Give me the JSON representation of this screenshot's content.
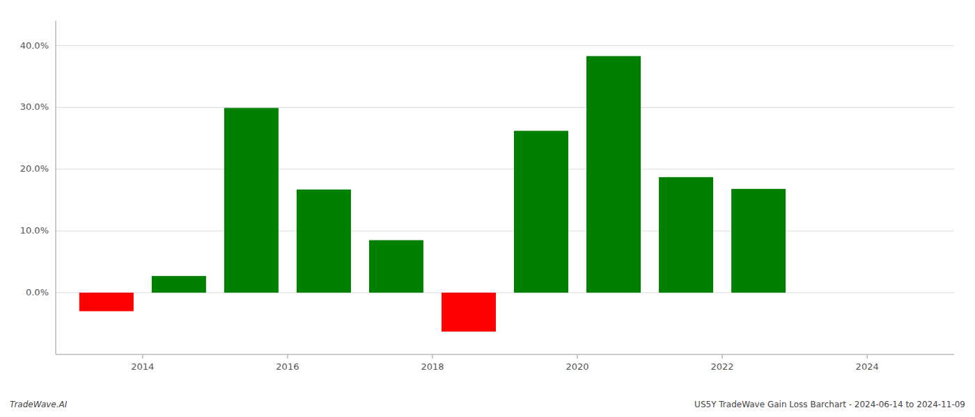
{
  "chart_data": {
    "type": "bar",
    "x": [
      2013.5,
      2014.5,
      2015.5,
      2016.5,
      2017.5,
      2018.5,
      2019.5,
      2020.5,
      2021.5,
      2022.5,
      2023.5
    ],
    "values": [
      -0.03,
      0.027,
      0.299,
      0.167,
      0.085,
      -0.063,
      0.262,
      0.383,
      0.187,
      0.168,
      0.0
    ],
    "colors": [
      "#ff0000",
      "#008000",
      "#008000",
      "#008000",
      "#008000",
      "#ff0000",
      "#008000",
      "#008000",
      "#008000",
      "#008000",
      "#008000"
    ],
    "ylim": [
      -0.1,
      0.44
    ],
    "yticks": [
      {
        "value": 0.0,
        "label": "0.0%"
      },
      {
        "value": 0.1,
        "label": "10.0%"
      },
      {
        "value": 0.2,
        "label": "20.0%"
      },
      {
        "value": 0.3,
        "label": "30.0%"
      },
      {
        "value": 0.4,
        "label": "40.0%"
      }
    ],
    "xlim": [
      2012.8,
      2025.2
    ],
    "xticks": [
      2014,
      2016,
      2018,
      2020,
      2022,
      2024
    ],
    "grid": true,
    "annotations": [
      "TradeWave.AI",
      "US5Y TradeWave Gain Loss Barchart - 2024-06-14 to 2024-11-09"
    ]
  }
}
